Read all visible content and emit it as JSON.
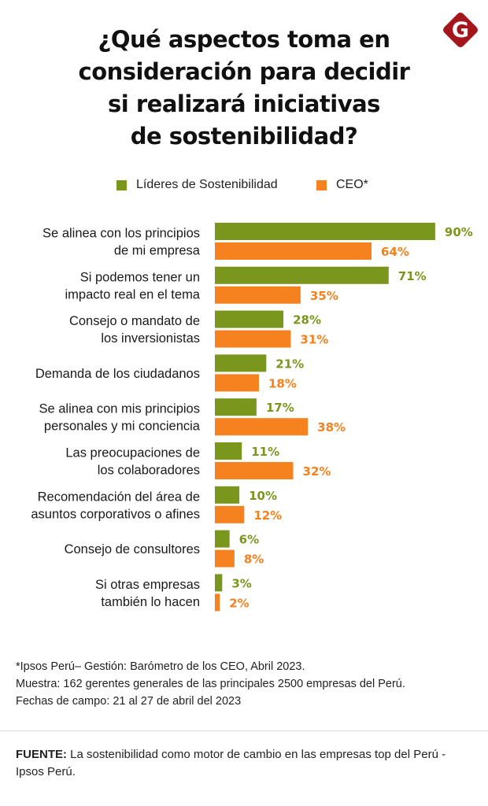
{
  "title_lines": [
    "¿Qué aspectos toma en",
    "consideración  para decidir",
    "si realizará iniciativas",
    "de sostenibilidad?"
  ],
  "logo": {
    "letter": "G",
    "icon": "gestion-logo-icon",
    "color": "#a5151c"
  },
  "colors": {
    "lideres": "#7a961d",
    "ceo": "#f5811f"
  },
  "chart_data": {
    "type": "bar",
    "orientation": "horizontal",
    "title": "¿Qué aspectos toma en consideración para decidir si realizará iniciativas de sostenibilidad?",
    "xlabel": "",
    "ylabel": "",
    "xlim": [
      0,
      100
    ],
    "grid": false,
    "legend": {
      "position": "top-center",
      "entries": [
        "Líderes de Sostenibilidad",
        "CEO*"
      ]
    },
    "unit": "%",
    "categories": [
      [
        "Se alinea con los principios",
        "de mi empresa"
      ],
      [
        "Si podemos tener un",
        "impacto real en el tema"
      ],
      [
        "Consejo o mandato de",
        "los inversionistas"
      ],
      [
        "Demanda de los ciudadanos"
      ],
      [
        "Se alinea con mis principios",
        "personales y mi conciencia"
      ],
      [
        "Las preocupaciones de",
        "los colaboradores"
      ],
      [
        "Recomendación del área de",
        "asuntos corporativos o afines"
      ],
      [
        "Consejo de consultores"
      ],
      [
        "Si otras empresas",
        "también lo hacen"
      ]
    ],
    "series": [
      {
        "name": "Líderes de Sostenibilidad",
        "color": "#7a961d",
        "values": [
          90,
          71,
          28,
          21,
          17,
          11,
          10,
          6,
          3
        ],
        "labels": [
          "90%",
          "71%",
          "28%",
          "21%",
          "17%",
          "11%",
          "10%",
          "6%",
          "3%"
        ]
      },
      {
        "name": "CEO*",
        "color": "#f5811f",
        "values": [
          64,
          35,
          31,
          18,
          38,
          32,
          12,
          8,
          2
        ],
        "labels": [
          "64%",
          "35%",
          "31%",
          "18%",
          "38%",
          "32%",
          "12%",
          "8%",
          "2%"
        ]
      }
    ]
  },
  "legend": {
    "lideres": "Líderes de Sostenibilidad",
    "ceo": "CEO*"
  },
  "notes": [
    "*Ipsos Perú– Gestión: Barómetro de los CEO, Abril 2023.",
    "Muestra: 162 gerentes generales de las principales 2500 empresas del Perú.",
    "Fechas de campo: 21 al 27 de abril del 2023"
  ],
  "source": {
    "label": "FUENTE:",
    "text": " La sostenibilidad como motor de cambio en las empresas top del Perú - Ipsos Perú."
  }
}
